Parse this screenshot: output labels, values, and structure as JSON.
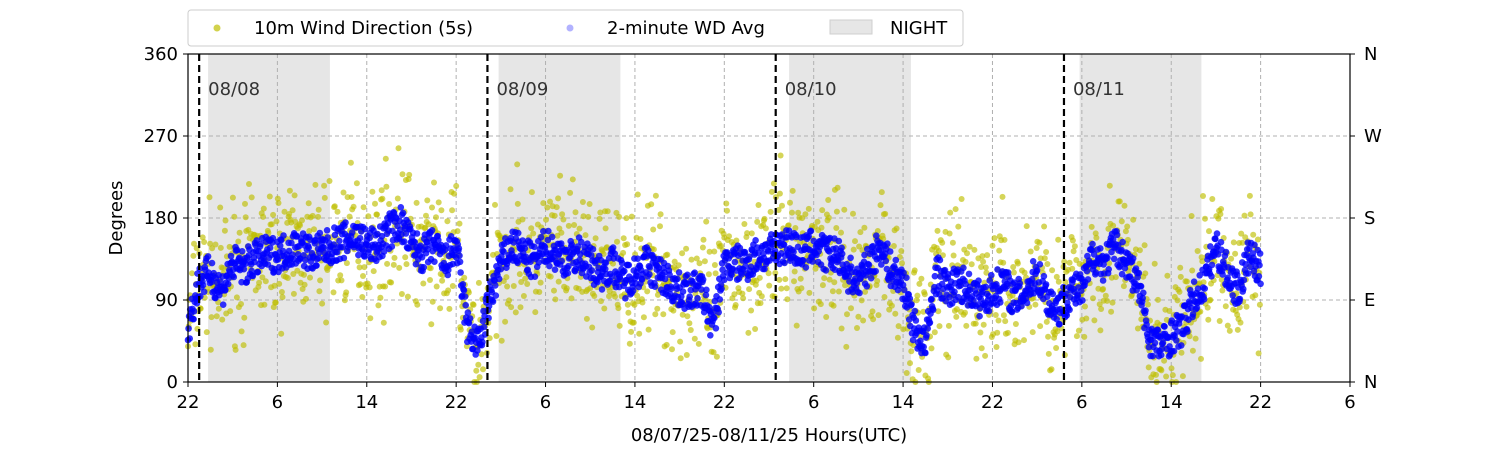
{
  "chart_data": {
    "type": "scatter",
    "xlabel": "08/07/25-08/11/25  Hours(UTC)",
    "ylabel": "Degrees",
    "x_start": "2025-08-07T22:00Z",
    "x_end": "2025-08-12T06:00Z",
    "xlim_hours": [
      0,
      104
    ],
    "x_ticks_hours": [
      0,
      8,
      16,
      24,
      32,
      40,
      48,
      56,
      64,
      72,
      80,
      88,
      96,
      104
    ],
    "x_tick_labels": [
      "22",
      "6",
      "14",
      "22",
      "6",
      "14",
      "22",
      "6",
      "14",
      "22",
      "6",
      "14",
      "22",
      "6"
    ],
    "ylim": [
      0,
      360
    ],
    "y_ticks": [
      0,
      90,
      180,
      270,
      360
    ],
    "y_tick_labels": [
      "0",
      "90",
      "180",
      "270",
      "360"
    ],
    "y2_tick_labels": [
      "N",
      "E",
      "S",
      "W",
      "N"
    ],
    "grid": true,
    "legend_position": "top-left, above plot",
    "legend": [
      "10m Wind Direction (5s)",
      "2-minute WD Avg",
      "NIGHT"
    ],
    "colors": {
      "wind_5s": "#bfbf00",
      "wind_2min": "#0000ff",
      "night": "#e6e6e6",
      "day_line": "#000000",
      "grid": "#b0b0b0"
    },
    "night_periods_hours": [
      [
        1.8,
        12.7
      ],
      [
        27.8,
        38.7
      ],
      [
        53.8,
        64.7
      ],
      [
        79.8,
        90.7
      ]
    ],
    "day_dividers": [
      {
        "hour": 1.0,
        "label": "08/08"
      },
      {
        "hour": 26.8,
        "label": "08/09"
      },
      {
        "hour": 52.6,
        "label": "08/10"
      },
      {
        "hour": 78.4,
        "label": "08/11"
      }
    ],
    "data_end_hour": 96,
    "series": [
      {
        "name": "2-minute WD Avg",
        "x_hours": [
          0,
          1,
          2,
          3,
          4,
          5,
          6,
          7,
          8,
          9,
          10,
          11,
          12,
          13,
          14,
          15,
          16,
          17,
          18,
          19,
          20,
          21,
          22,
          23,
          24,
          25,
          26,
          27,
          28,
          29,
          30,
          31,
          32,
          33,
          34,
          35,
          36,
          37,
          38,
          39,
          40,
          41,
          42,
          43,
          44,
          45,
          46,
          47,
          48,
          49,
          50,
          51,
          52,
          53,
          54,
          55,
          56,
          57,
          58,
          59,
          60,
          61,
          62,
          63,
          64,
          65,
          66,
          67,
          68,
          69,
          70,
          71,
          72,
          73,
          74,
          75,
          76,
          77,
          78,
          79,
          80,
          81,
          82,
          83,
          84,
          85,
          86,
          87,
          88,
          89,
          90,
          91,
          92,
          93,
          94,
          95,
          96
        ],
        "values": [
          60,
          110,
          120,
          100,
          130,
          125,
          135,
          140,
          140,
          145,
          150,
          140,
          145,
          150,
          155,
          160,
          150,
          150,
          165,
          175,
          150,
          140,
          150,
          130,
          150,
          60,
          40,
          90,
          130,
          150,
          140,
          130,
          150,
          140,
          135,
          140,
          130,
          120,
          130,
          110,
          120,
          130,
          120,
          110,
          100,
          100,
          100,
          60,
          130,
          130,
          130,
          140,
          140,
          150,
          150,
          140,
          150,
          140,
          140,
          120,
          110,
          130,
          150,
          120,
          110,
          60,
          40,
          120,
          100,
          110,
          100,
          90,
          100,
          110,
          90,
          100,
          120,
          90,
          80,
          100,
          100,
          140,
          130,
          150,
          130,
          110,
          50,
          40,
          50,
          60,
          90,
          110,
          150,
          120,
          100,
          140,
          120
        ]
      },
      {
        "name": "10m Wind Direction (5s)",
        "spread_degrees": 45
      }
    ]
  }
}
